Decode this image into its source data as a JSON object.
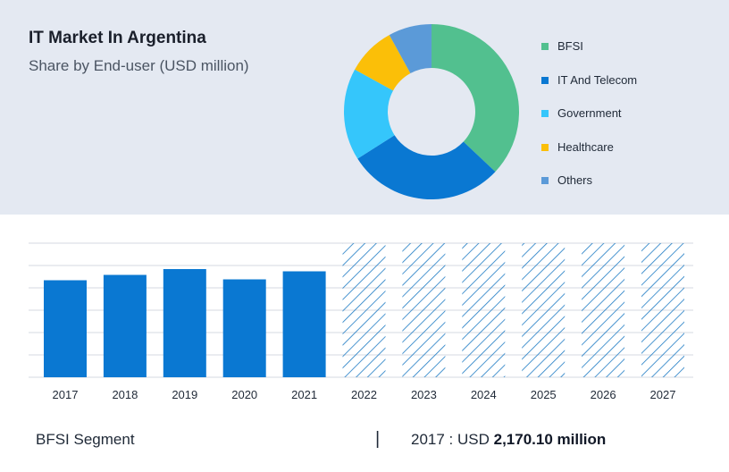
{
  "header": {
    "title": "IT Market In Argentina",
    "subtitle": "Share by End-user (USD million)"
  },
  "colors": {
    "panel_bg": "#e4e9f2",
    "bar": "#0a78d2",
    "hatch": "#1e7bc4",
    "grid": "#d4d9e1"
  },
  "chart_data": [
    {
      "type": "pie",
      "subtype": "donut",
      "title": "",
      "slices": [
        {
          "label": "BFSI",
          "value": 37,
          "color": "#52c08f"
        },
        {
          "label": "IT And Telecom",
          "value": 29,
          "color": "#0a78d2"
        },
        {
          "label": "Government",
          "value": 17,
          "color": "#35c6fb"
        },
        {
          "label": "Healthcare",
          "value": 9,
          "color": "#fbbf08"
        },
        {
          "label": "Others",
          "value": 8,
          "color": "#5b9ad8"
        }
      ],
      "legend_position": "right"
    },
    {
      "type": "bar",
      "title": "",
      "xlabel": "",
      "ylabel": "",
      "categories": [
        "2017",
        "2018",
        "2019",
        "2020",
        "2021",
        "2022",
        "2023",
        "2024",
        "2025",
        "2026",
        "2027"
      ],
      "values": [
        2170.1,
        2290,
        2420,
        2190,
        2370,
        null,
        null,
        null,
        null,
        null,
        null
      ],
      "forecast_categories": [
        "2022",
        "2023",
        "2024",
        "2025",
        "2026",
        "2027"
      ],
      "forecast_style": "hatched",
      "ylim": [
        0,
        3000
      ],
      "grid": true
    }
  ],
  "footer": {
    "segment_label": "BFSI Segment",
    "separator": "|",
    "year_prefix": "2017 : USD ",
    "value": "2,170.10 million"
  }
}
